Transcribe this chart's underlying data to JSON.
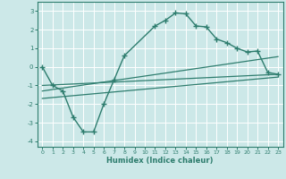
{
  "xlabel": "Humidex (Indice chaleur)",
  "bg_color": "#cce8e8",
  "grid_color": "#ffffff",
  "line_color": "#2e7d6e",
  "xlim": [
    -0.5,
    23.5
  ],
  "ylim": [
    -4.3,
    3.5
  ],
  "yticks": [
    -4,
    -3,
    -2,
    -1,
    0,
    1,
    2,
    3
  ],
  "xticks": [
    0,
    1,
    2,
    3,
    4,
    5,
    6,
    7,
    8,
    9,
    10,
    11,
    12,
    13,
    14,
    15,
    16,
    17,
    18,
    19,
    20,
    21,
    22,
    23
  ],
  "series1_x": [
    0,
    1,
    2,
    3,
    4,
    5,
    6,
    7,
    8,
    11,
    12,
    13,
    14,
    15,
    16,
    17,
    18,
    19,
    20,
    21,
    22,
    23
  ],
  "series1_y": [
    0.0,
    -1.0,
    -1.3,
    -2.7,
    -3.5,
    -3.5,
    -2.0,
    -0.7,
    0.6,
    2.2,
    2.5,
    2.9,
    2.85,
    2.2,
    2.15,
    1.5,
    1.3,
    1.0,
    0.8,
    0.85,
    -0.3,
    -0.4
  ],
  "series2_x": [
    0,
    23
  ],
  "series2_y": [
    -1.0,
    -0.4
  ],
  "series3_x": [
    0,
    23
  ],
  "series3_y": [
    -1.3,
    0.55
  ],
  "series4_x": [
    0,
    23
  ],
  "series4_y": [
    -1.7,
    -0.55
  ]
}
